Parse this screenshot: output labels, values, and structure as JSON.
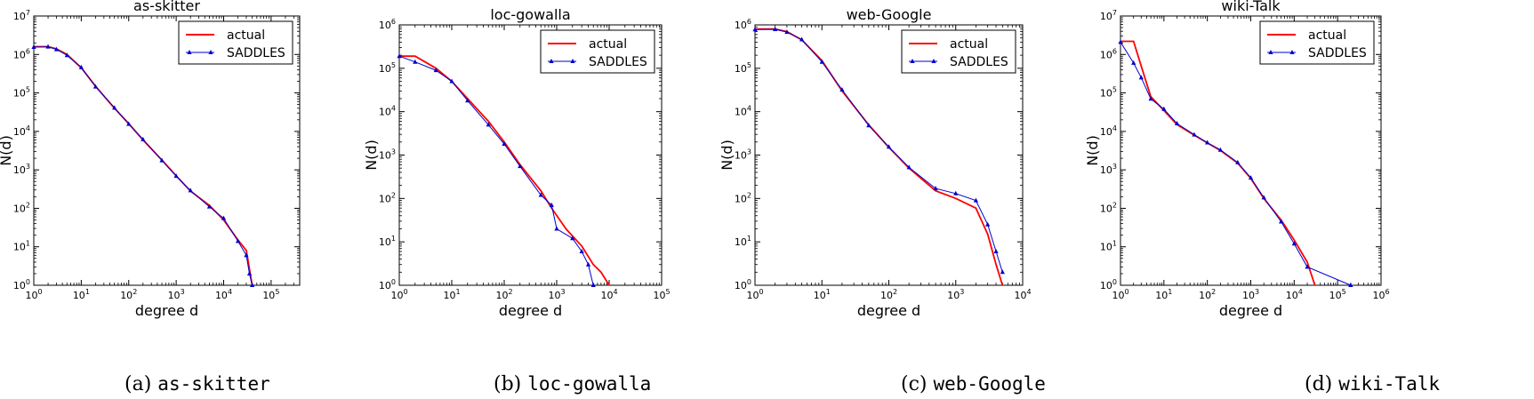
{
  "legend_position": "top-right",
  "colors": {
    "actual": "#ff0000",
    "saddles": "#0000cc"
  },
  "chart_data": [
    {
      "type": "line",
      "title": "as-skitter",
      "xlabel": "degree d",
      "ylabel": "N(d)",
      "caption": "as-skitter",
      "caption_prefix": "(a)",
      "x_scale": "log",
      "y_scale": "log",
      "xlim": [
        1,
        400000
      ],
      "ylim": [
        1,
        10000000
      ],
      "x_tick_labels": [
        "10^0",
        "10^1",
        "10^2",
        "10^3",
        "10^4",
        "10^5"
      ],
      "y_tick_labels": [
        "10^0",
        "10^1",
        "10^2",
        "10^3",
        "10^4",
        "10^5",
        "10^6",
        "10^7"
      ],
      "legend": [
        "actual",
        "SADDLES"
      ],
      "series": [
        {
          "name": "actual",
          "points": [
            [
              1,
              1600000
            ],
            [
              2,
              1600000
            ],
            [
              3,
              1400000
            ],
            [
              5,
              1000000
            ],
            [
              10,
              450000
            ],
            [
              20,
              150000
            ],
            [
              50,
              40000
            ],
            [
              100,
              16000
            ],
            [
              200,
              6000
            ],
            [
              500,
              1800
            ],
            [
              1000,
              700
            ],
            [
              2000,
              280
            ],
            [
              5000,
              120
            ],
            [
              10000,
              50
            ],
            [
              20000,
              15
            ],
            [
              30000,
              8
            ],
            [
              40000,
              1
            ]
          ]
        },
        {
          "name": "SADDLES",
          "points": [
            [
              1,
              1550000
            ],
            [
              2,
              1580000
            ],
            [
              3,
              1350000
            ],
            [
              5,
              950000
            ],
            [
              10,
              460000
            ],
            [
              20,
              145000
            ],
            [
              50,
              41000
            ],
            [
              100,
              15500
            ],
            [
              200,
              6200
            ],
            [
              500,
              1750
            ],
            [
              1000,
              690
            ],
            [
              2000,
              290
            ],
            [
              5000,
              110
            ],
            [
              10000,
              55
            ],
            [
              20000,
              14
            ],
            [
              30000,
              6
            ],
            [
              35000,
              2
            ],
            [
              40000,
              1
            ]
          ]
        }
      ]
    },
    {
      "type": "line",
      "title": "loc-gowalla",
      "xlabel": "degree d",
      "ylabel": "N(d)",
      "caption": "loc-gowalla",
      "caption_prefix": "(b)",
      "x_scale": "log",
      "y_scale": "log",
      "xlim": [
        1,
        100000
      ],
      "ylim": [
        1,
        1000000
      ],
      "x_tick_labels": [
        "10^0",
        "10^1",
        "10^2",
        "10^3",
        "10^4",
        "10^5"
      ],
      "y_tick_labels": [
        "10^0",
        "10^1",
        "10^2",
        "10^3",
        "10^4",
        "10^5",
        "10^6"
      ],
      "legend": [
        "actual",
        "SADDLES"
      ],
      "series": [
        {
          "name": "actual",
          "points": [
            [
              1,
              190000
            ],
            [
              2,
              190000
            ],
            [
              5,
              100000
            ],
            [
              10,
              50000
            ],
            [
              20,
              20000
            ],
            [
              50,
              6000
            ],
            [
              100,
              2000
            ],
            [
              200,
              600
            ],
            [
              500,
              150
            ],
            [
              800,
              60
            ],
            [
              1500,
              20
            ],
            [
              3000,
              8
            ],
            [
              5000,
              3
            ],
            [
              7000,
              2
            ],
            [
              10000,
              1
            ]
          ]
        },
        {
          "name": "SADDLES",
          "points": [
            [
              1,
              190000
            ],
            [
              2,
              140000
            ],
            [
              5,
              90000
            ],
            [
              10,
              50000
            ],
            [
              20,
              18000
            ],
            [
              50,
              5000
            ],
            [
              100,
              1800
            ],
            [
              200,
              550
            ],
            [
              500,
              120
            ],
            [
              800,
              70
            ],
            [
              1000,
              20
            ],
            [
              2000,
              12
            ],
            [
              3000,
              6
            ],
            [
              4000,
              3
            ],
            [
              5000,
              1
            ]
          ]
        }
      ]
    },
    {
      "type": "line",
      "title": "web-Google",
      "xlabel": "degree d",
      "ylabel": "N(d)",
      "caption": "web-Google",
      "caption_prefix": "(c)",
      "x_scale": "log",
      "y_scale": "log",
      "xlim": [
        1,
        10000
      ],
      "ylim": [
        1,
        1000000
      ],
      "x_tick_labels": [
        "10^0",
        "10^1",
        "10^2",
        "10^3",
        "10^4"
      ],
      "y_tick_labels": [
        "10^0",
        "10^1",
        "10^2",
        "10^3",
        "10^4",
        "10^5",
        "10^6"
      ],
      "legend": [
        "actual",
        "SADDLES"
      ],
      "series": [
        {
          "name": "actual",
          "points": [
            [
              1,
              800000
            ],
            [
              2,
              800000
            ],
            [
              3,
              700000
            ],
            [
              5,
              450000
            ],
            [
              10,
              150000
            ],
            [
              20,
              30000
            ],
            [
              50,
              5000
            ],
            [
              100,
              1500
            ],
            [
              200,
              500
            ],
            [
              500,
              150
            ],
            [
              1000,
              100
            ],
            [
              2000,
              60
            ],
            [
              3000,
              15
            ],
            [
              4000,
              3
            ],
            [
              5000,
              1
            ]
          ]
        },
        {
          "name": "SADDLES",
          "points": [
            [
              1,
              780000
            ],
            [
              2,
              790000
            ],
            [
              3,
              680000
            ],
            [
              5,
              460000
            ],
            [
              10,
              140000
            ],
            [
              20,
              32000
            ],
            [
              50,
              4800
            ],
            [
              100,
              1550
            ],
            [
              200,
              520
            ],
            [
              500,
              170
            ],
            [
              1000,
              130
            ],
            [
              2000,
              90
            ],
            [
              3000,
              25
            ],
            [
              4000,
              6
            ],
            [
              5000,
              2
            ]
          ]
        }
      ]
    },
    {
      "type": "line",
      "title": "wiki-Talk",
      "xlabel": "degree d",
      "ylabel": "N(d)",
      "caption": "wiki-Talk",
      "caption_prefix": "(d)",
      "x_scale": "log",
      "y_scale": "log",
      "xlim": [
        1,
        1000000
      ],
      "ylim": [
        1,
        10000000
      ],
      "x_tick_labels": [
        "10^0",
        "10^1",
        "10^2",
        "10^3",
        "10^4",
        "10^5",
        "10^6"
      ],
      "y_tick_labels": [
        "10^0",
        "10^1",
        "10^2",
        "10^3",
        "10^4",
        "10^5",
        "10^6",
        "10^7"
      ],
      "legend": [
        "actual",
        "SADDLES"
      ],
      "series": [
        {
          "name": "actual",
          "points": [
            [
              1,
              2200000
            ],
            [
              2,
              2200000
            ],
            [
              3,
              500000
            ],
            [
              5,
              80000
            ],
            [
              10,
              35000
            ],
            [
              20,
              15000
            ],
            [
              50,
              8000
            ],
            [
              100,
              5000
            ],
            [
              200,
              3200
            ],
            [
              500,
              1500
            ],
            [
              1000,
              600
            ],
            [
              2000,
              180
            ],
            [
              5000,
              50
            ],
            [
              10000,
              15
            ],
            [
              20000,
              4
            ],
            [
              30000,
              1
            ]
          ]
        },
        {
          "name": "SADDLES",
          "points": [
            [
              1,
              2100000
            ],
            [
              2,
              600000
            ],
            [
              3,
              250000
            ],
            [
              5,
              70000
            ],
            [
              10,
              38000
            ],
            [
              20,
              16000
            ],
            [
              50,
              8200
            ],
            [
              100,
              5100
            ],
            [
              200,
              3300
            ],
            [
              500,
              1550
            ],
            [
              1000,
              620
            ],
            [
              2000,
              190
            ],
            [
              5000,
              45
            ],
            [
              10000,
              12
            ],
            [
              20000,
              3
            ],
            [
              200000,
              1
            ]
          ]
        }
      ]
    }
  ]
}
